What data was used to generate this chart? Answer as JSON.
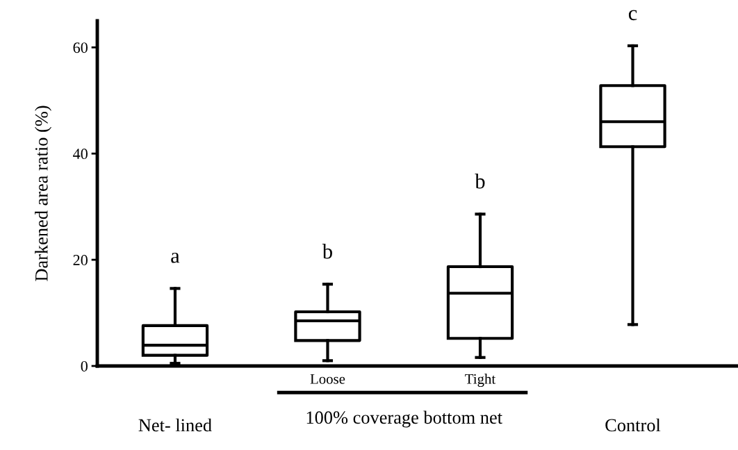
{
  "chart_data": {
    "type": "box",
    "ylabel": "Darkened area ratio (%)",
    "categories": [
      "Net- lined",
      "Loose",
      "Tight",
      "Control"
    ],
    "boxes": [
      {
        "low": 0.5,
        "q1": 2.0,
        "median": 3.9,
        "q3": 7.6,
        "high": 14.6
      },
      {
        "low": 1.0,
        "q1": 4.8,
        "median": 8.5,
        "q3": 10.2,
        "high": 15.4
      },
      {
        "low": 1.6,
        "q1": 5.2,
        "median": 13.7,
        "q3": 18.7,
        "high": 28.6
      },
      {
        "low": 7.8,
        "q1": 41.3,
        "median": 46.0,
        "q3": 52.8,
        "high": 60.3
      }
    ],
    "ylim": [
      0,
      65
    ],
    "yticks": [
      0,
      20,
      40,
      60
    ],
    "grid": false,
    "annotations": [
      "a",
      "b",
      "b",
      "c",
      "100% coverage bottom net"
    ]
  }
}
